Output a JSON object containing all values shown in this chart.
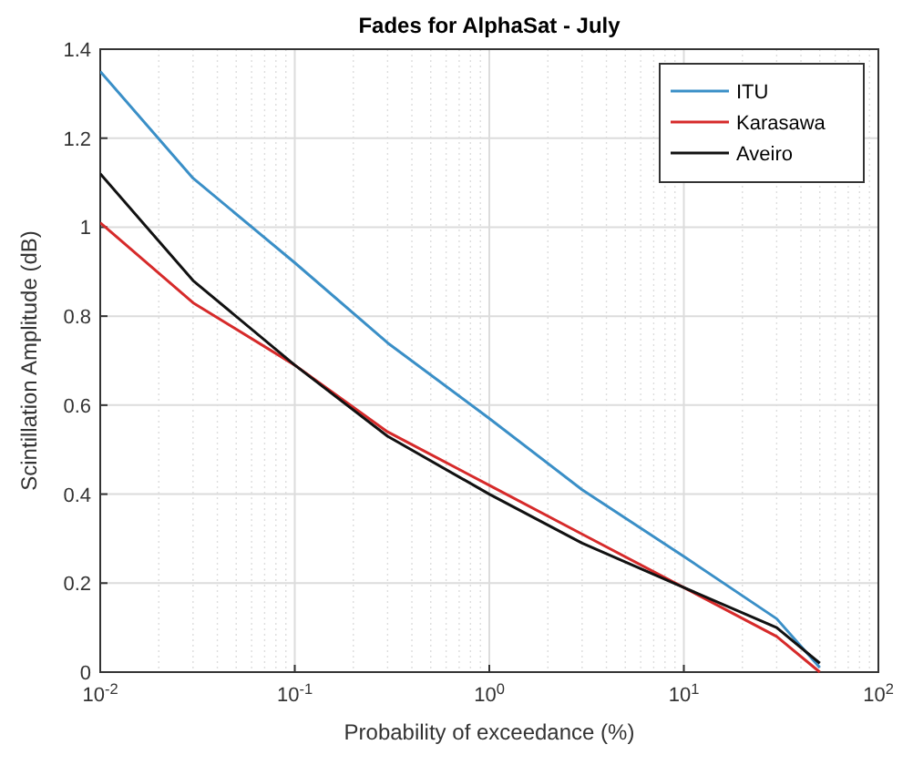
{
  "chart_data": {
    "type": "line",
    "title": "Fades for AlphaSat - July",
    "xlabel": "Probability of exceedance (%)",
    "ylabel": "Scintillation Amplitude (dB)",
    "log": "x",
    "grid": true,
    "legend": "top right",
    "line_style": "solid",
    "x": [
      0.01,
      0.03,
      0.1,
      0.3,
      1,
      3,
      10,
      30,
      50
    ],
    "xlim": [
      0.01,
      100
    ],
    "xticks": [
      {
        "value": 0.01,
        "label": "10$^{-2}$"
      },
      {
        "value": 0.1,
        "label": "10$^{-1}$"
      },
      {
        "value": 1,
        "label": "10$^{0}$"
      },
      {
        "value": 10,
        "label": "10$^{1}$"
      },
      {
        "value": 100,
        "label": "10$^{2}$"
      }
    ],
    "ylim": [
      0,
      1.4
    ],
    "yticks": [
      0,
      0.2,
      0.4,
      0.6,
      0.8,
      1,
      1.2,
      1.4
    ],
    "series": [
      {
        "name": "ITU",
        "color": "#3a8fc7",
        "values": [
          1.35,
          1.11,
          0.92,
          0.74,
          0.57,
          0.41,
          0.26,
          0.12,
          0.01
        ]
      },
      {
        "name": "Karasawa",
        "color": "#d62a2a",
        "values": [
          1.01,
          0.83,
          0.69,
          0.54,
          0.42,
          0.31,
          0.19,
          0.08,
          0
        ]
      },
      {
        "name": "Aveiro",
        "color": "#111111",
        "values": [
          1.12,
          0.88,
          0.69,
          0.53,
          0.4,
          0.29,
          0.19,
          0.1,
          0.02
        ]
      }
    ]
  }
}
